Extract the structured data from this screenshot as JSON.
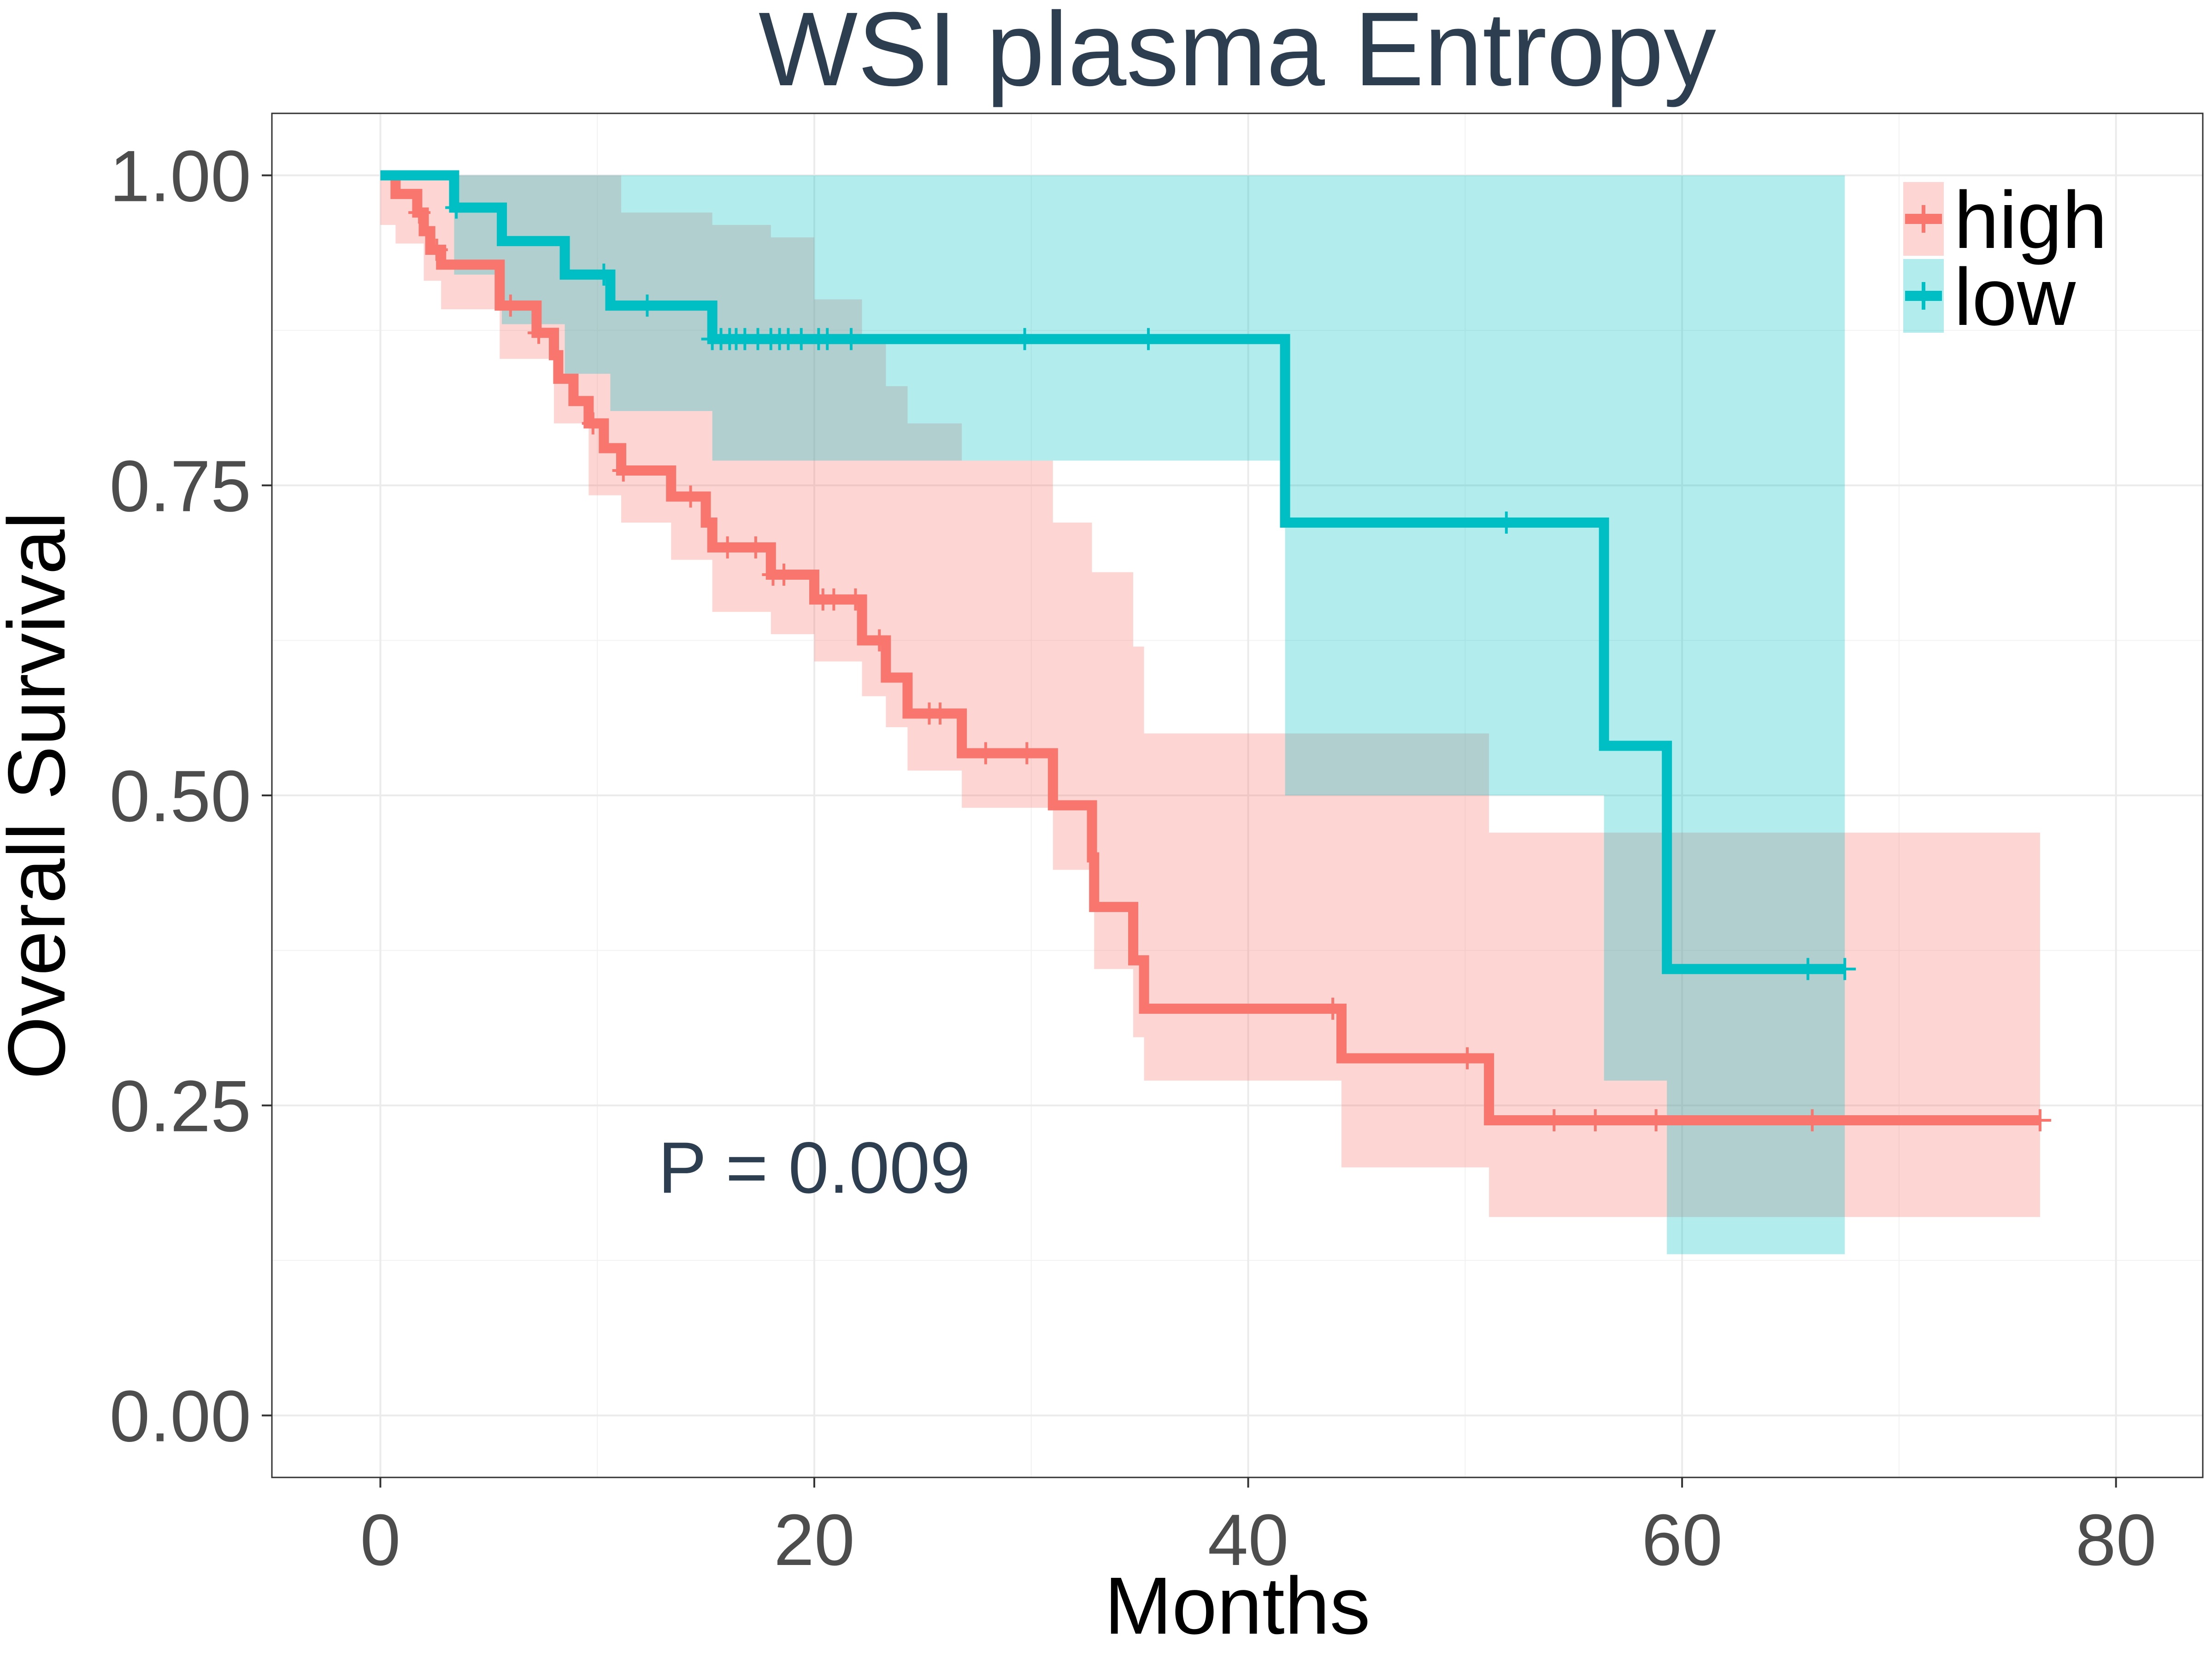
{
  "chart_data": {
    "type": "line",
    "subtype": "kaplan-meier",
    "title": "WSI plasma Entropy",
    "xlabel": "Months",
    "ylabel": "Overall Survival",
    "xlim": [
      -5,
      84
    ],
    "ylim": [
      -0.05,
      1.05
    ],
    "xticks": [
      0,
      20,
      40,
      60,
      80
    ],
    "xtick_labels": [
      "0",
      "20",
      "40",
      "60",
      "80"
    ],
    "yticks": [
      0,
      0.25,
      0.5,
      0.75,
      1.0
    ],
    "ytick_labels": [
      "0.00",
      "0.25",
      "0.50",
      "0.75",
      "1.00"
    ],
    "grid": true,
    "annotation": "P = 0.009",
    "annotation_pos": {
      "x": 20,
      "y": 0.2
    },
    "legend": {
      "placement": "top-right"
    },
    "series": [
      {
        "name": "high",
        "color": "#F8766D",
        "steps": [
          [
            0,
            1.0
          ],
          [
            0.7,
            0.985
          ],
          [
            1.7,
            0.97
          ],
          [
            2.0,
            0.955
          ],
          [
            2.3,
            0.94
          ],
          [
            2.8,
            0.928
          ],
          [
            5.5,
            0.895
          ],
          [
            7.2,
            0.873
          ],
          [
            8.0,
            0.855
          ],
          [
            8.2,
            0.836
          ],
          [
            8.9,
            0.818
          ],
          [
            9.6,
            0.8
          ],
          [
            10.3,
            0.78
          ],
          [
            11.1,
            0.762
          ],
          [
            13.4,
            0.741
          ],
          [
            15.0,
            0.72
          ],
          [
            15.3,
            0.7
          ],
          [
            18.0,
            0.678
          ],
          [
            20.0,
            0.658
          ],
          [
            22.2,
            0.625
          ],
          [
            23.3,
            0.595
          ],
          [
            24.3,
            0.566
          ],
          [
            26.8,
            0.534
          ],
          [
            31.0,
            0.492
          ],
          [
            32.8,
            0.45
          ],
          [
            32.9,
            0.41
          ],
          [
            34.7,
            0.367
          ],
          [
            35.2,
            0.328
          ],
          [
            44.3,
            0.288
          ],
          [
            51.1,
            0.238
          ],
          [
            76.5,
            0.238
          ]
        ],
        "ci_lower": [
          [
            0,
            0.96
          ],
          [
            0.7,
            0.945
          ],
          [
            2.0,
            0.915
          ],
          [
            2.8,
            0.892
          ],
          [
            5.5,
            0.852
          ],
          [
            8.0,
            0.8
          ],
          [
            9.6,
            0.742
          ],
          [
            11.1,
            0.72
          ],
          [
            13.4,
            0.69
          ],
          [
            15.3,
            0.648
          ],
          [
            18.0,
            0.63
          ],
          [
            20.0,
            0.608
          ],
          [
            22.2,
            0.58
          ],
          [
            23.3,
            0.555
          ],
          [
            24.3,
            0.52
          ],
          [
            26.8,
            0.49
          ],
          [
            31.0,
            0.44
          ],
          [
            32.8,
            0.41
          ],
          [
            32.9,
            0.36
          ],
          [
            34.7,
            0.305
          ],
          [
            35.2,
            0.27
          ],
          [
            44.3,
            0.2
          ],
          [
            51.1,
            0.16
          ],
          [
            76.5,
            0.16
          ]
        ],
        "ci_upper": [
          [
            0,
            1.0
          ],
          [
            10.3,
            1.0
          ],
          [
            11.1,
            0.97
          ],
          [
            15.3,
            0.96
          ],
          [
            18.0,
            0.95
          ],
          [
            20.0,
            0.9
          ],
          [
            22.2,
            0.865
          ],
          [
            23.3,
            0.83
          ],
          [
            24.3,
            0.8
          ],
          [
            26.8,
            0.77
          ],
          [
            31.0,
            0.72
          ],
          [
            32.8,
            0.68
          ],
          [
            34.7,
            0.62
          ],
          [
            35.2,
            0.55
          ],
          [
            51.1,
            0.47
          ],
          [
            76.5,
            0.47
          ]
        ],
        "censor_x": [
          1.8,
          2.6,
          6.0,
          7.3,
          9.8,
          11.2,
          14.3,
          16.0,
          17.3,
          18.1,
          18.6,
          20.4,
          20.9,
          21.9,
          23.0,
          25.3,
          25.8,
          27.9,
          29.8,
          43.9,
          50.1,
          54.1,
          56.0,
          58.8,
          66.0,
          76.5
        ]
      },
      {
        "name": "low",
        "color": "#00BFC4",
        "steps": [
          [
            0,
            1.0
          ],
          [
            3.4,
            0.974
          ],
          [
            5.6,
            0.947
          ],
          [
            8.5,
            0.92
          ],
          [
            10.6,
            0.895
          ],
          [
            15.3,
            0.868
          ],
          [
            41.7,
            0.72
          ],
          [
            56.4,
            0.54
          ],
          [
            59.3,
            0.36
          ],
          [
            67.5,
            0.36
          ]
        ],
        "ci_lower": [
          [
            0,
            1.0
          ],
          [
            3.4,
            0.92
          ],
          [
            5.6,
            0.88
          ],
          [
            8.5,
            0.84
          ],
          [
            10.6,
            0.81
          ],
          [
            15.3,
            0.77
          ],
          [
            41.7,
            0.5
          ],
          [
            56.4,
            0.27
          ],
          [
            59.3,
            0.13
          ],
          [
            67.5,
            0.13
          ]
        ],
        "ci_upper": [
          [
            0,
            1.0
          ],
          [
            67.5,
            1.0
          ]
        ],
        "censor_x": [
          3.5,
          10.3,
          12.3,
          15.3,
          15.7,
          16.1,
          16.4,
          16.8,
          17.4,
          18.0,
          18.4,
          18.8,
          19.4,
          20.2,
          20.6,
          21.7,
          29.7,
          35.4,
          51.9,
          65.8,
          67.5
        ]
      }
    ]
  }
}
